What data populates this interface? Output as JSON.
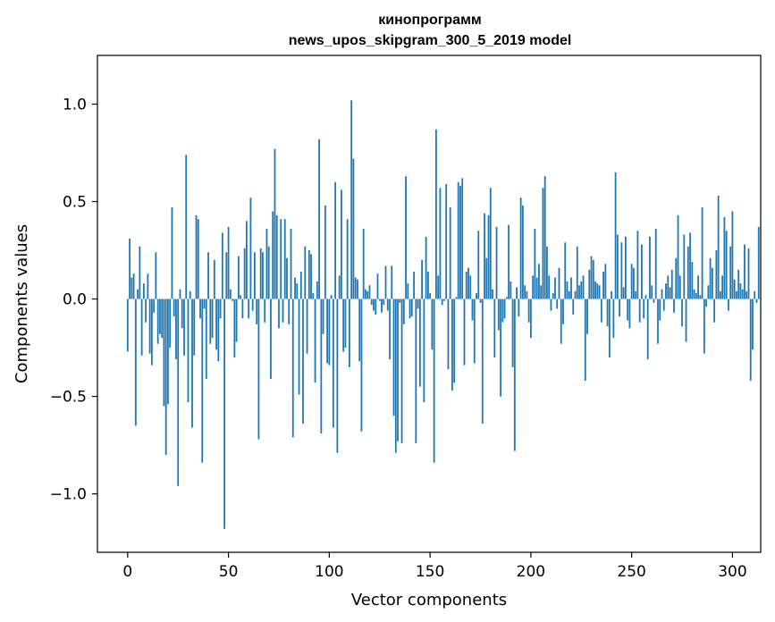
{
  "chart_data": {
    "type": "bar",
    "title": "кинопрограмм",
    "subtitle": "news_upos_skipgram_300_5_2019 model",
    "xlabel": "Vector components",
    "ylabel": "Components values",
    "xlim": [
      -15,
      314
    ],
    "ylim": [
      -1.3,
      1.25
    ],
    "xticks": [
      0,
      50,
      100,
      150,
      200,
      250,
      300
    ],
    "xtick_labels": [
      "0",
      "50",
      "100",
      "150",
      "200",
      "250",
      "300"
    ],
    "yticks": [
      -1.0,
      -0.5,
      0.0,
      0.5,
      1.0
    ],
    "ytick_labels": [
      "−1.0",
      "−0.5",
      "0.0",
      "0.5",
      "1.0"
    ],
    "grid": false,
    "bar_color": "#1f77b4",
    "series": [
      {
        "values": [
          -0.27,
          0.31,
          0.11,
          0.13,
          -0.65,
          0.05,
          0.27,
          -0.29,
          0.08,
          -0.12,
          0.13,
          -0.28,
          -0.34,
          -0.07,
          0.24,
          -0.23,
          -0.18,
          -0.2,
          -0.55,
          -0.8,
          -0.54,
          -0.25,
          0.47,
          -0.09,
          -0.31,
          -0.96,
          0.05,
          -0.15,
          -0.29,
          0.74,
          -0.53,
          0.04,
          -0.66,
          -0.29,
          0.43,
          0.41,
          -0.1,
          -0.84,
          -0.05,
          -0.41,
          0.24,
          -0.23,
          -0.2,
          0.2,
          -0.26,
          -0.32,
          -0.1,
          0.34,
          -1.18,
          0.24,
          0.37,
          0.05,
          -0.01,
          -0.3,
          -0.22,
          0.22,
          0.02,
          -0.1,
          0.26,
          0.4,
          -0.1,
          0.52,
          -0.06,
          0.24,
          -0.13,
          -0.72,
          0.26,
          0.24,
          -0.12,
          0.36,
          0.27,
          -0.41,
          0.45,
          0.77,
          0.43,
          -0.15,
          0.41,
          -0.12,
          0.41,
          0.21,
          -0.13,
          0.36,
          -0.71,
          0.11,
          0.08,
          -0.49,
          0.14,
          -0.64,
          0.27,
          -0.28,
          0.25,
          0.23,
          0.03,
          -0.43,
          0.09,
          0.82,
          -0.69,
          -0.18,
          0.48,
          -0.33,
          -0.34,
          0.02,
          -0.66,
          0.6,
          -0.79,
          0.12,
          0.56,
          -0.27,
          -0.25,
          0.41,
          -0.35,
          1.02,
          0.72,
          0.11,
          0.1,
          -0.32,
          -0.68,
          0.36,
          0.05,
          0.04,
          0.07,
          -0.03,
          -0.06,
          -0.08,
          0.13,
          -0.01,
          -0.07,
          -0.03,
          0.17,
          -0.06,
          -0.31,
          0.17,
          -0.6,
          -0.79,
          -0.73,
          -0.02,
          -0.74,
          -0.13,
          0.63,
          0.08,
          -0.1,
          -0.09,
          0.14,
          -0.74,
          -0.05,
          -0.45,
          0.2,
          -0.53,
          0.32,
          0.14,
          0.03,
          -0.26,
          -0.84,
          0.87,
          0.12,
          0.57,
          -0.03,
          -0.01,
          0.59,
          -0.36,
          0.47,
          -0.47,
          -0.43,
          0.01,
          0.6,
          0.58,
          0.62,
          -0.34,
          0.14,
          0.16,
          0.12,
          -0.11,
          -0.33,
          0.03,
          0.35,
          -0.02,
          -0.64,
          0.44,
          0.21,
          0.43,
          0.57,
          0.05,
          -0.3,
          0.37,
          -0.16,
          -0.5,
          -0.12,
          -0.1,
          0.01,
          0.38,
          0.09,
          -0.35,
          -0.78,
          0.06,
          -0.09,
          0.52,
          0.48,
          0.07,
          0.04,
          -0.12,
          -0.2,
          0.12,
          0.36,
          0.11,
          0.18,
          0.07,
          0.57,
          0.63,
          0.27,
          0.12,
          -0.06,
          0.03,
          0.11,
          -0.05,
          0.16,
          -0.23,
          -0.13,
          0.29,
          0.09,
          0.04,
          0.11,
          -0.08,
          0.04,
          0.27,
          0.07,
          0.09,
          0.12,
          -0.42,
          -0.18,
          0.15,
          0.22,
          0.2,
          0.09,
          0.08,
          0.07,
          -0.12,
          0.14,
          0.18,
          -0.14,
          -0.3,
          0.04,
          -0.2,
          0.65,
          0.33,
          -0.09,
          0.29,
          0.06,
          0.32,
          -0.11,
          -0.15,
          0.18,
          0.16,
          0.04,
          0.35,
          -0.12,
          0.28,
          -0.1,
          0.02,
          -0.31,
          0.32,
          0.07,
          -0.02,
          0.36,
          -0.23,
          -0.11,
          0.05,
          -0.06,
          0.08,
          0.12,
          0.06,
          0.15,
          -0.07,
          0.21,
          0.43,
          0.12,
          -0.14,
          0.33,
          -0.22,
          0.27,
          0.34,
          0.19,
          0.05,
          0.03,
          0.12,
          0.02,
          0.47,
          -0.28,
          -0.04,
          0.07,
          0.21,
          0.16,
          -0.12,
          0.25,
          0.53,
          0.04,
          0.12,
          0.42,
          0.35,
          -0.06,
          0.27,
          0.45,
          0.1,
          0.04,
          0.15,
          0.08,
          0.05,
          0.28,
          0.04,
          0.26,
          -0.42,
          -0.26,
          0.04,
          -0.02,
          0.37,
          0.0
        ]
      }
    ]
  }
}
